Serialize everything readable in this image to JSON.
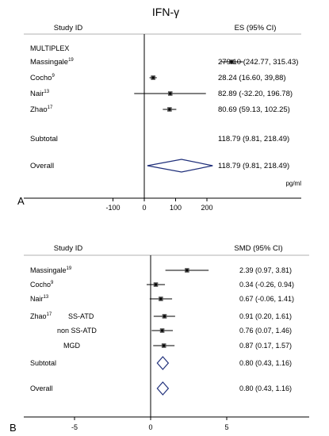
{
  "chart_data": [
    {
      "panel_label": "A",
      "type": "forest",
      "title": "IFN-γ",
      "header_left": "Study ID",
      "header_right": "ES (95% CI)",
      "group_label": "MULTIPLEX",
      "unit_label": "pg/ml",
      "x_ticks": [
        -100,
        0,
        100,
        200
      ],
      "xlim": [
        -175,
        285
      ],
      "rows": [
        {
          "name": "Massingale",
          "ref": "19",
          "es": 279.1,
          "lo": 242.77,
          "hi": 315.43,
          "ci_text": "279.10 (242.77, 315.43)"
        },
        {
          "name": "Cocho",
          "ref": "9",
          "es": 28.24,
          "lo": 16.6,
          "hi": 39.88,
          "ci_text": "28.24 (16.60, 39,88)"
        },
        {
          "name": "Nair",
          "ref": "13",
          "es": 82.89,
          "lo": -32.2,
          "hi": 196.78,
          "ci_text": "82.89 (-32.20, 196.78)"
        },
        {
          "name": "Zhao",
          "ref": "17",
          "es": 80.69,
          "lo": 59.13,
          "hi": 102.25,
          "ci_text": "80.69 (59.13, 102.25)"
        }
      ],
      "subtotal": {
        "label": "Subtotal",
        "es": 118.79,
        "lo": 9.81,
        "hi": 218.49,
        "ci_text": "118.79 (9.81, 218.49)"
      },
      "overall": {
        "label": "Overall",
        "es": 118.79,
        "lo": 9.81,
        "hi": 218.49,
        "ci_text": "118.79 (9.81, 218.49)"
      }
    },
    {
      "panel_label": "B",
      "type": "forest",
      "header_left": "Study ID",
      "header_right": "SMD (95% CI)",
      "x_ticks": [
        -5,
        0,
        5
      ],
      "xlim": [
        -10,
        9.5
      ],
      "rows": [
        {
          "name": "Massingale",
          "ref": "19",
          "sub": "",
          "es": 2.39,
          "lo": 0.97,
          "hi": 3.81,
          "ci_text": "2.39 (0.97, 3.81)"
        },
        {
          "name": "Cocho",
          "ref": "9",
          "sub": "",
          "es": 0.34,
          "lo": -0.26,
          "hi": 0.94,
          "ci_text": "0.34 (-0.26, 0.94)"
        },
        {
          "name": "Nair",
          "ref": "13",
          "sub": "",
          "es": 0.67,
          "lo": -0.06,
          "hi": 1.41,
          "ci_text": "0.67 (-0.06, 1.41)"
        },
        {
          "name": "Zhao",
          "ref": "17",
          "sub": "SS-ATD",
          "es": 0.91,
          "lo": 0.2,
          "hi": 1.61,
          "ci_text": "0.91 (0.20, 1.61)"
        },
        {
          "name": "",
          "ref": "",
          "sub": "non SS-ATD",
          "es": 0.76,
          "lo": 0.07,
          "hi": 1.46,
          "ci_text": "0.76 (0.07, 1.46)"
        },
        {
          "name": "",
          "ref": "",
          "sub": "MGD",
          "es": 0.87,
          "lo": 0.17,
          "hi": 1.57,
          "ci_text": "0.87 (0.17, 1.57)"
        }
      ],
      "subtotal": {
        "label": "Subtotal",
        "es": 0.8,
        "lo": 0.43,
        "hi": 1.16,
        "ci_text": "0.80 (0.43, 1.16)"
      },
      "overall": {
        "label": "Overall",
        "es": 0.8,
        "lo": 0.43,
        "hi": 1.16,
        "ci_text": "0.80 (0.43, 1.16)"
      }
    }
  ],
  "colors": {
    "diamond": "#1f2f7a",
    "line": "#000000",
    "rule": "#999999"
  }
}
